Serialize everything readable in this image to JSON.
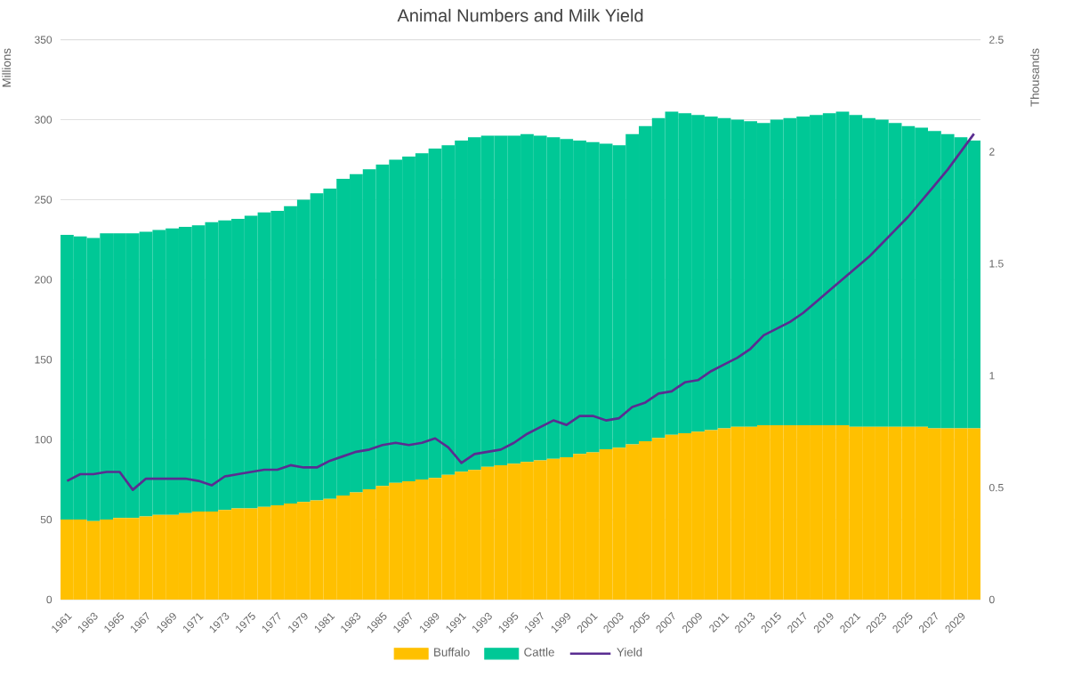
{
  "chart_data": {
    "type": "bar",
    "stacked": true,
    "title": "Animal Numbers and Milk Yield",
    "ylabel": "Millions",
    "y2label": "Thousands",
    "categories": [
      "1961",
      null,
      "1963",
      null,
      "1965",
      null,
      "1967",
      null,
      "1969",
      null,
      "1971",
      null,
      "1973",
      null,
      "1975",
      null,
      "1977",
      null,
      "1979",
      null,
      "1981",
      null,
      "1983",
      null,
      "1985",
      null,
      "1987",
      null,
      "1989",
      null,
      "1991",
      null,
      "1993",
      null,
      "1995",
      null,
      "1997",
      null,
      "1999",
      null,
      "2001",
      null,
      "2003",
      null,
      "2005",
      null,
      "2007",
      null,
      "2009",
      null,
      "2011",
      null,
      "2013",
      null,
      "2015",
      null,
      "2017",
      null,
      "2019",
      null,
      "2021",
      null,
      "2023",
      null,
      "2025",
      null,
      "2027",
      null,
      "2029",
      null
    ],
    "series": [
      {
        "name": "Buffalo",
        "color": "#ffc000",
        "values": [
          50,
          50,
          49,
          50,
          51,
          51,
          52,
          53,
          53,
          54,
          55,
          55,
          56,
          57,
          57,
          58,
          59,
          60,
          61,
          62,
          63,
          65,
          67,
          69,
          71,
          73,
          74,
          75,
          76,
          78,
          80,
          81,
          83,
          84,
          85,
          86,
          87,
          88,
          89,
          91,
          92,
          94,
          95,
          97,
          99,
          101,
          103,
          104,
          105,
          106,
          107,
          108,
          108,
          109,
          109,
          109,
          109,
          109,
          109,
          109,
          108,
          108,
          108,
          108,
          108,
          108,
          107,
          107,
          107,
          107
        ]
      },
      {
        "name": "Cattle",
        "color": "#00c896",
        "values": [
          178,
          177,
          177,
          179,
          178,
          178,
          178,
          178,
          179,
          179,
          179,
          181,
          181,
          181,
          183,
          184,
          184,
          186,
          189,
          192,
          194,
          198,
          199,
          200,
          201,
          202,
          203,
          204,
          206,
          206,
          207,
          208,
          207,
          206,
          205,
          205,
          203,
          201,
          199,
          196,
          194,
          191,
          189,
          194,
          197,
          200,
          202,
          200,
          198,
          196,
          194,
          192,
          191,
          189,
          191,
          192,
          193,
          194,
          195,
          196,
          195,
          193,
          192,
          190,
          188,
          187,
          186,
          184,
          182,
          180
        ]
      },
      {
        "name": "Yield",
        "type": "line",
        "axis": "y2",
        "color": "#5a2d91",
        "values": [
          0.53,
          0.56,
          0.56,
          0.57,
          0.57,
          0.49,
          0.54,
          0.54,
          0.54,
          0.54,
          0.53,
          0.51,
          0.55,
          0.56,
          0.57,
          0.58,
          0.58,
          0.6,
          0.59,
          0.59,
          0.62,
          0.64,
          0.66,
          0.67,
          0.69,
          0.7,
          0.69,
          0.7,
          0.72,
          0.68,
          0.61,
          0.65,
          0.66,
          0.67,
          0.7,
          0.74,
          0.77,
          0.8,
          0.78,
          0.82,
          0.82,
          0.8,
          0.81,
          0.86,
          0.88,
          0.92,
          0.93,
          0.97,
          0.98,
          1.02,
          1.05,
          1.08,
          1.12,
          1.18,
          1.21,
          1.24,
          1.28,
          1.33,
          1.38,
          1.43,
          1.48,
          1.53,
          1.59,
          1.65,
          1.71,
          1.78,
          1.85,
          1.92,
          2.0,
          2.08
        ]
      }
    ],
    "ylim": [
      0,
      350
    ],
    "yticks": [
      0,
      50,
      100,
      150,
      200,
      250,
      300,
      350
    ],
    "y2lim": [
      0,
      2.5
    ],
    "y2ticks": [
      0,
      0.5,
      1,
      1.5,
      2,
      2.5
    ],
    "grid": "y",
    "legend": "bottom"
  }
}
